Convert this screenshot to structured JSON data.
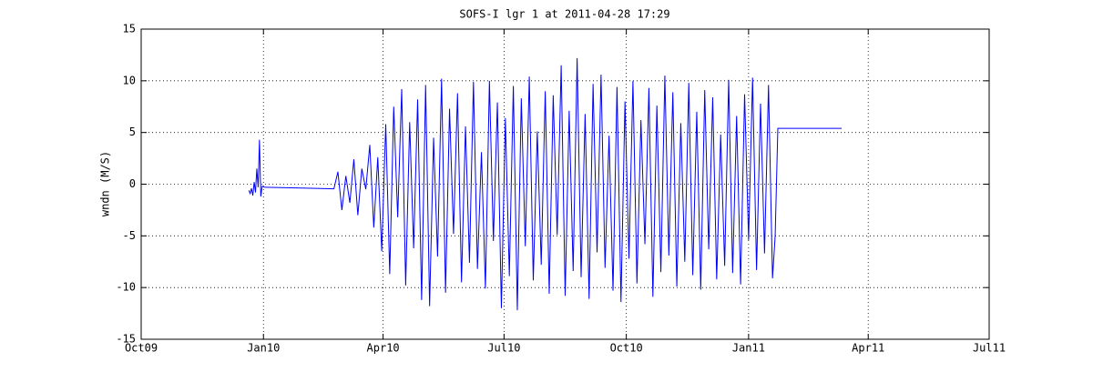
{
  "chart_data": {
    "type": "line",
    "title": "SOFS-I lgr 1 at 2011-04-28 17:29",
    "ylabel": "wndn (M/S)",
    "x": [
      734128,
      734129,
      734130,
      734131,
      734132,
      734133,
      734134,
      734135,
      734136,
      734137,
      734138,
      734140,
      734160,
      734175,
      734192,
      734195,
      734198,
      734201,
      734204,
      734207,
      734210,
      734213,
      734216,
      734219,
      734222,
      734225,
      734228,
      734231,
      734234,
      734237,
      734240,
      734243,
      734246,
      734249,
      734252,
      734255,
      734258,
      734261,
      734264,
      734267,
      734270,
      734273,
      734276,
      734279,
      734282,
      734285,
      734288,
      734291,
      734294,
      734297,
      734300,
      734303,
      734306,
      734309,
      734312,
      734315,
      734318,
      734321,
      734324,
      734327,
      734330,
      734333,
      734336,
      734339,
      734342,
      734345,
      734348,
      734351,
      734354,
      734357,
      734360,
      734363,
      734366,
      734369,
      734372,
      734375,
      734378,
      734381,
      734384,
      734387,
      734390,
      734393,
      734396,
      734399,
      734402,
      734405,
      734408,
      734411,
      734414,
      734417,
      734420,
      734423,
      734426,
      734429,
      734432,
      734435,
      734438,
      734441,
      734444,
      734447,
      734450,
      734453,
      734456,
      734459,
      734462,
      734465,
      734468,
      734471,
      734474,
      734477,
      734480,
      734483,
      734486,
      734489,
      734492,
      734495,
      734498,
      734501,
      734504,
      734507,
      734510,
      734513,
      734516,
      734519,
      734522,
      734524,
      734526,
      734574
    ],
    "series": [
      {
        "name": "wndn",
        "color": "#0000ff",
        "values": [
          -0.6,
          -0.9,
          -0.4,
          -1.1,
          0.2,
          -0.8,
          1.5,
          -0.3,
          4.3,
          -1.2,
          -0.2,
          -0.3,
          -0.35,
          -0.4,
          -0.45,
          1.2,
          -2.5,
          0.8,
          -1.8,
          2.4,
          -3.0,
          1.5,
          -0.5,
          3.8,
          -4.2,
          2.6,
          -6.5,
          5.8,
          -8.7,
          7.5,
          -3.2,
          9.2,
          -9.8,
          6.0,
          -6.2,
          8.2,
          -11.2,
          9.6,
          -11.8,
          4.5,
          -7.0,
          10.2,
          -10.5,
          7.3,
          -4.8,
          8.8,
          -9.5,
          5.6,
          -7.6,
          9.9,
          -8.2,
          3.1,
          -10.1,
          10.0,
          -5.5,
          7.9,
          -12.0,
          6.4,
          -8.9,
          9.5,
          -12.2,
          8.3,
          -6.0,
          10.4,
          -9.3,
          5.1,
          -7.8,
          9.0,
          -10.6,
          8.6,
          -4.9,
          11.5,
          -10.8,
          7.1,
          -8.4,
          12.2,
          -9.0,
          6.8,
          -11.1,
          9.7,
          -6.6,
          10.6,
          -8.1,
          4.7,
          -10.3,
          9.4,
          -11.4,
          8.0,
          -7.2,
          10.0,
          -9.6,
          6.2,
          -5.8,
          9.3,
          -10.9,
          7.6,
          -8.5,
          10.5,
          -6.9,
          8.9,
          -9.9,
          5.9,
          -7.5,
          9.8,
          -8.8,
          7.0,
          -10.2,
          9.1,
          -6.3,
          8.4,
          -9.2,
          4.8,
          -7.9,
          10.1,
          -8.6,
          6.6,
          -9.7,
          8.7,
          -5.4,
          10.3,
          -8.3,
          7.8,
          -6.7,
          9.6,
          -9.1,
          -5.0,
          5.4,
          5.4
        ]
      }
    ],
    "xlim": [
      734047,
      734685
    ],
    "xticks": [
      {
        "value": 734047,
        "label": "Oct09"
      },
      {
        "value": 734139,
        "label": "Jan10"
      },
      {
        "value": 734229,
        "label": "Apr10"
      },
      {
        "value": 734320,
        "label": "Jul10"
      },
      {
        "value": 734412,
        "label": "Oct10"
      },
      {
        "value": 734504,
        "label": "Jan11"
      },
      {
        "value": 734594,
        "label": "Apr11"
      },
      {
        "value": 734685,
        "label": "Jul11"
      }
    ],
    "ylim": [
      -15,
      15
    ],
    "yticks": [
      -15,
      -10,
      -5,
      0,
      5,
      10,
      15
    ],
    "grid": true
  }
}
